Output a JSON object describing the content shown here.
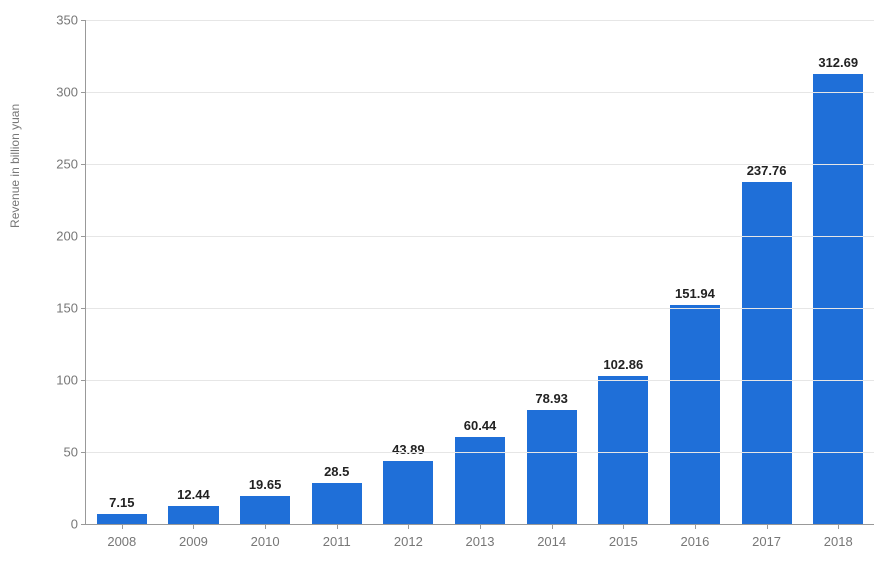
{
  "chart": {
    "type": "bar",
    "ylabel": "Revenue in billion yuan",
    "label_fontsize": 12,
    "value_label_fontsize": 13,
    "tick_fontsize": 13,
    "categories": [
      "2008",
      "2009",
      "2010",
      "2011",
      "2012",
      "2013",
      "2014",
      "2015",
      "2016",
      "2017",
      "2018"
    ],
    "values": [
      7.15,
      12.44,
      19.65,
      28.5,
      43.89,
      60.44,
      78.93,
      102.86,
      151.94,
      237.76,
      312.69
    ],
    "value_labels": [
      "7.15",
      "12.44",
      "19.65",
      "28.5",
      "43.89",
      "60.44",
      "78.93",
      "102.86",
      "151.94",
      "237.76",
      "312.69"
    ],
    "bar_color": "#1f6fd8",
    "ylim": [
      0,
      350
    ],
    "ytick_step": 50,
    "yticks": [
      "0",
      "50",
      "100",
      "150",
      "200",
      "250",
      "300",
      "350"
    ],
    "background_color": "#ffffff",
    "grid_color": "#e6e6e6",
    "axis_color": "#999999",
    "tick_label_color": "#777777",
    "value_label_color": "#222222",
    "bar_width": 0.7
  }
}
